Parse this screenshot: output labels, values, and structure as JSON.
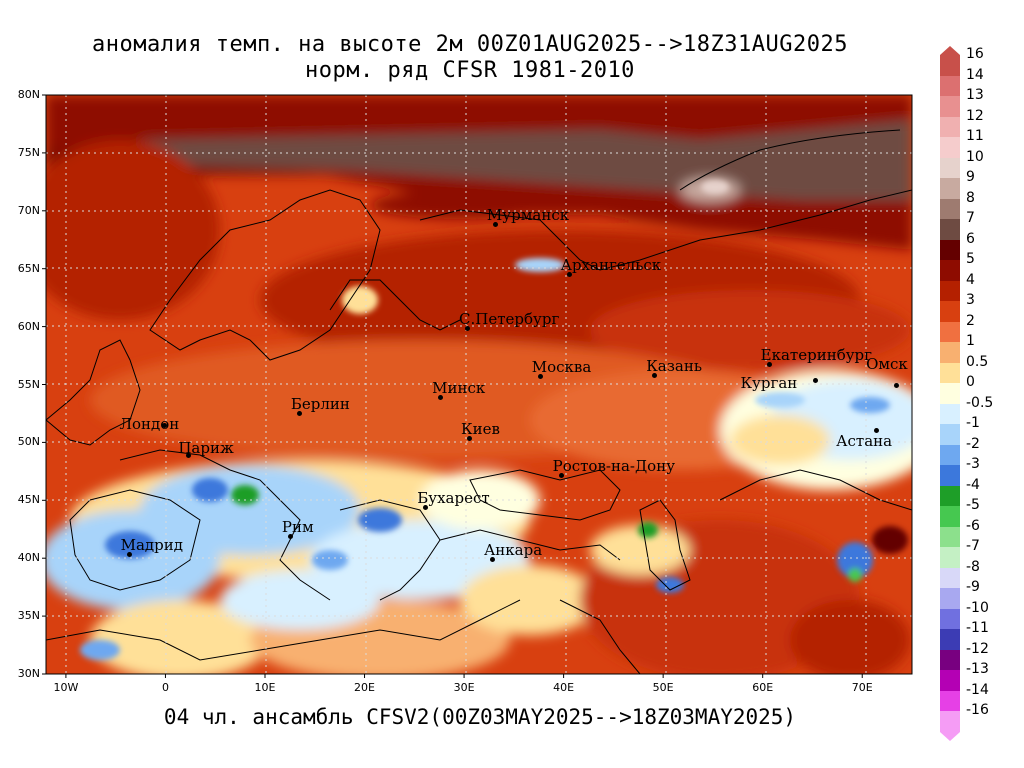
{
  "title": {
    "line1": "аномалия темп. на высоте 2м 00Z01AUG2025-->18Z31AUG2025",
    "line2": "норм. ряд CFSR 1981-2010"
  },
  "footer": "04 чл. ансамбль CFSV2(00Z03MAY2025-->18Z03MAY2025)",
  "map": {
    "lat_labels": [
      "80N",
      "75N",
      "70N",
      "65N",
      "60N",
      "55N",
      "50N",
      "45N",
      "40N",
      "35N",
      "30N"
    ],
    "lon_labels": [
      "10W",
      "0",
      "10E",
      "20E",
      "30E",
      "40E",
      "50E",
      "60E",
      "70E"
    ],
    "extent": {
      "lon_min": -12,
      "lon_max": 75,
      "lat_min": 30,
      "lat_max": 80
    },
    "cities": [
      {
        "name": "Мурманск",
        "lon": 33.1,
        "lat": 68.9
      },
      {
        "name": "Архангельск",
        "lon": 40.5,
        "lat": 64.5
      },
      {
        "name": "С.Петербург",
        "lon": 30.3,
        "lat": 59.9
      },
      {
        "name": "Москва",
        "lon": 37.6,
        "lat": 55.7
      },
      {
        "name": "Казань",
        "lon": 49.1,
        "lat": 55.8
      },
      {
        "name": "Екатеринбург",
        "lon": 60.6,
        "lat": 56.8
      },
      {
        "name": "Курган",
        "lon": 65.3,
        "lat": 55.4
      },
      {
        "name": "Омск",
        "lon": 73.4,
        "lat": 55.0
      },
      {
        "name": "Астана",
        "lon": 71.4,
        "lat": 51.1
      },
      {
        "name": "Минск",
        "lon": 27.6,
        "lat": 53.9
      },
      {
        "name": "Киев",
        "lon": 30.5,
        "lat": 50.4
      },
      {
        "name": "Берлин",
        "lon": 13.4,
        "lat": 52.5
      },
      {
        "name": "Лондон",
        "lon": -0.1,
        "lat": 51.5
      },
      {
        "name": "Париж",
        "lon": 2.3,
        "lat": 48.9
      },
      {
        "name": "Ростов-на-Дону",
        "lon": 39.7,
        "lat": 47.2
      },
      {
        "name": "Бухарест",
        "lon": 26.1,
        "lat": 44.4
      },
      {
        "name": "Рим",
        "lon": 12.5,
        "lat": 41.9
      },
      {
        "name": "Мадрид",
        "lon": -3.7,
        "lat": 40.4
      },
      {
        "name": "Анкара",
        "lon": 32.8,
        "lat": 39.9
      }
    ]
  },
  "legend": {
    "labels": [
      "16",
      "14",
      "13",
      "12",
      "11",
      "10",
      "9",
      "8",
      "7",
      "6",
      "5",
      "4",
      "3",
      "2",
      "1",
      "0.5",
      "0",
      "-0.5",
      "-1",
      "-2",
      "-3",
      "-4",
      "-5",
      "-6",
      "-7",
      "-8",
      "-9",
      "-10",
      "-11",
      "-12",
      "-13",
      "-14",
      "-16"
    ],
    "colors": [
      "#c8504a",
      "#dc7070",
      "#e89090",
      "#f0b0b0",
      "#f5cccc",
      "#e6d2cc",
      "#c8aaa0",
      "#9e7b70",
      "#6e4b42",
      "#640000",
      "#8e0c00",
      "#b42000",
      "#d84010",
      "#f07040",
      "#f8b070",
      "#ffe098",
      "#ffffe0",
      "#d8f0ff",
      "#a8d4fa",
      "#6ea8f0",
      "#3c78dc",
      "#1e9e28",
      "#46c850",
      "#8ce08c",
      "#c4f0c4",
      "#d8d8f8",
      "#a8a8f0",
      "#7070e0",
      "#3c3cb4",
      "#780080",
      "#b400b4",
      "#e640e6",
      "#f59cf5"
    ]
  }
}
